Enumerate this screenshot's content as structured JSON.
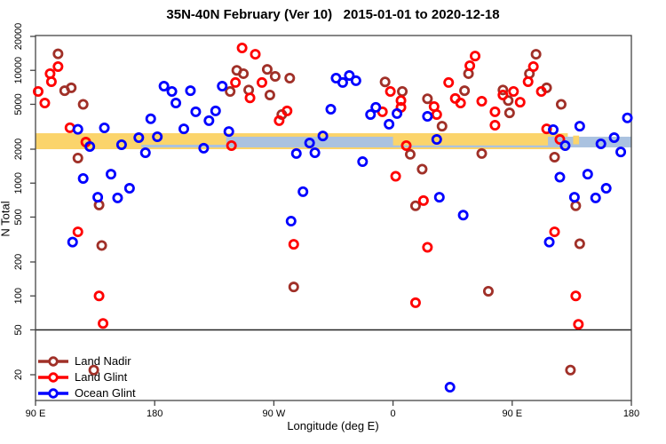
{
  "title": "35N-40N February (Ver 10)   2015-01-01 to 2020-12-18",
  "axes": {
    "x": {
      "label": "Longitude (deg E)",
      "ticks": [
        {
          "deg": 0,
          "label": "90 E"
        },
        {
          "deg": 90,
          "label": "180"
        },
        {
          "deg": 180,
          "label": "90 W"
        },
        {
          "deg": 270,
          "label": "0"
        },
        {
          "deg": 360,
          "label": "90 E"
        },
        {
          "deg": 450,
          "label": "180"
        }
      ]
    },
    "y": {
      "label": "N Total",
      "scale": "log",
      "tick_labels": [
        "20",
        "50",
        "100",
        "200",
        "500",
        "1000",
        "2000",
        "5000",
        "10000",
        "20000"
      ],
      "tick_values": [
        20,
        50,
        100,
        200,
        500,
        1000,
        2000,
        5000,
        10000,
        20000
      ]
    }
  },
  "legend": {
    "items": [
      {
        "label": "Land Nadir",
        "color": "#A03028"
      },
      {
        "label": "Land Glint",
        "color": "#FF0000"
      },
      {
        "label": "Ocean Glint",
        "color": "#0000FF"
      }
    ]
  },
  "colors": {
    "land_nadir": "#A03028",
    "land_glint": "#FF0000",
    "ocean_glint": "#0000FF",
    "band_yellow": "#FBD46B",
    "band_blue": "#AAC2E0",
    "box": "#444444",
    "threshold_line": "#222222"
  },
  "chart_data": {
    "type": "scatter",
    "title": "35N-40N February (Ver 10)   2015-01-01 to 2020-12-18",
    "xlabel": "Longitude (deg E)",
    "ylabel": "N Total",
    "x_axis_degrees_span": [
      0,
      450
    ],
    "ylim": [
      12,
      20500
    ],
    "threshold_line_n": 50,
    "bands": [
      {
        "color": "#FBD46B",
        "deg": [
          0,
          402
        ],
        "n": [
          2000,
          2770
        ]
      },
      {
        "color": "#AAC2E0",
        "deg": [
          80,
          450
        ],
        "n": [
          2075,
          2580
        ]
      },
      {
        "color": "#FBD46B",
        "deg": [
          80,
          144
        ],
        "n": [
          2190,
          2770
        ]
      },
      {
        "color": "#FBD46B",
        "deg": [
          270,
          387
        ],
        "n": [
          2160,
          2770
        ]
      },
      {
        "color": "#FBD46B",
        "deg": [
          406,
          410.5
        ],
        "n": [
          2210,
          2640
        ]
      }
    ],
    "series": [
      {
        "name": "Land Nadir",
        "color": "#A03028",
        "points": [
          [
            17,
            14000
          ],
          [
            22,
            6600
          ],
          [
            27,
            7000
          ],
          [
            32,
            1670
          ],
          [
            36,
            5000
          ],
          [
            44,
            22
          ],
          [
            48,
            640
          ],
          [
            50,
            280
          ],
          [
            147,
            6500
          ],
          [
            152,
            10000
          ],
          [
            157,
            9350
          ],
          [
            161,
            6700
          ],
          [
            175,
            10200
          ],
          [
            177,
            6050
          ],
          [
            181,
            8850
          ],
          [
            186,
            4060
          ],
          [
            192,
            8530
          ],
          [
            195,
            120
          ],
          [
            264,
            7900
          ],
          [
            277,
            6500
          ],
          [
            283,
            1800
          ],
          [
            287,
            630
          ],
          [
            292,
            1330
          ],
          [
            296,
            5600
          ],
          [
            307,
            3200
          ],
          [
            324,
            6600
          ],
          [
            327,
            9350
          ],
          [
            337,
            1830
          ],
          [
            342,
            110
          ],
          [
            353,
            6700
          ],
          [
            357,
            5400
          ],
          [
            358,
            4200
          ],
          [
            373,
            9350
          ],
          [
            378,
            13900
          ],
          [
            386,
            7000
          ],
          [
            392,
            1700
          ],
          [
            397,
            5000
          ],
          [
            404,
            22
          ],
          [
            408,
            630
          ],
          [
            411,
            290
          ]
        ]
      },
      {
        "name": "Land Glint",
        "color": "#FF0000",
        "points": [
          [
            2,
            6500
          ],
          [
            7,
            5130
          ],
          [
            11,
            9350
          ],
          [
            12,
            7940
          ],
          [
            17,
            10800
          ],
          [
            26,
            3100
          ],
          [
            32,
            370
          ],
          [
            38,
            2310
          ],
          [
            48,
            100
          ],
          [
            51,
            57
          ],
          [
            148,
            2150
          ],
          [
            151,
            7800
          ],
          [
            156,
            15800
          ],
          [
            162,
            5700
          ],
          [
            166,
            13900
          ],
          [
            171,
            7800
          ],
          [
            184,
            3580
          ],
          [
            190,
            4370
          ],
          [
            195,
            287
          ],
          [
            262,
            4290
          ],
          [
            268,
            6500
          ],
          [
            272,
            1150
          ],
          [
            276,
            5400
          ],
          [
            276,
            4700
          ],
          [
            280,
            2150
          ],
          [
            287,
            87
          ],
          [
            293,
            700
          ],
          [
            296,
            270
          ],
          [
            301,
            4780
          ],
          [
            303,
            4060
          ],
          [
            312,
            7800
          ],
          [
            317,
            5630
          ],
          [
            321,
            5130
          ],
          [
            328,
            11000
          ],
          [
            332,
            13400
          ],
          [
            337,
            5320
          ],
          [
            347,
            4290
          ],
          [
            347,
            3260
          ],
          [
            353,
            6050
          ],
          [
            361,
            6500
          ],
          [
            366,
            5220
          ],
          [
            372,
            7940
          ],
          [
            376,
            10800
          ],
          [
            382,
            6500
          ],
          [
            386,
            3030
          ],
          [
            392,
            370
          ],
          [
            396,
            2440
          ],
          [
            408,
            100
          ],
          [
            410,
            56
          ]
        ]
      },
      {
        "name": "Ocean Glint",
        "color": "#0000FF",
        "points": [
          [
            28,
            300
          ],
          [
            32,
            3000
          ],
          [
            36,
            1100
          ],
          [
            41,
            2110
          ],
          [
            47,
            750
          ],
          [
            52,
            3090
          ],
          [
            57,
            1200
          ],
          [
            62,
            740
          ],
          [
            65,
            2190
          ],
          [
            71,
            900
          ],
          [
            78,
            2530
          ],
          [
            83,
            1860
          ],
          [
            87,
            3720
          ],
          [
            92,
            2580
          ],
          [
            97,
            7240
          ],
          [
            103,
            6500
          ],
          [
            106,
            5130
          ],
          [
            112,
            3030
          ],
          [
            117,
            6600
          ],
          [
            121,
            4290
          ],
          [
            127,
            2040
          ],
          [
            131,
            3580
          ],
          [
            136,
            4370
          ],
          [
            141,
            7240
          ],
          [
            146,
            2870
          ],
          [
            193,
            460
          ],
          [
            197,
            1830
          ],
          [
            202,
            840
          ],
          [
            207,
            2270
          ],
          [
            211,
            1860
          ],
          [
            217,
            2620
          ],
          [
            223,
            4520
          ],
          [
            227,
            8530
          ],
          [
            232,
            7800
          ],
          [
            237,
            9000
          ],
          [
            242,
            8090
          ],
          [
            247,
            1550
          ],
          [
            253,
            4060
          ],
          [
            257,
            4700
          ],
          [
            267,
            3330
          ],
          [
            273,
            4140
          ],
          [
            296,
            3910
          ],
          [
            303,
            2440
          ],
          [
            305,
            750
          ],
          [
            313,
            15.5
          ],
          [
            323,
            520
          ],
          [
            388,
            300
          ],
          [
            391,
            2980
          ],
          [
            396,
            1130
          ],
          [
            400,
            2150
          ],
          [
            407,
            750
          ],
          [
            411,
            3200
          ],
          [
            417,
            1200
          ],
          [
            423,
            740
          ],
          [
            427,
            2230
          ],
          [
            431,
            900
          ],
          [
            437,
            2530
          ],
          [
            442,
            1890
          ],
          [
            447,
            3790
          ]
        ]
      }
    ]
  }
}
